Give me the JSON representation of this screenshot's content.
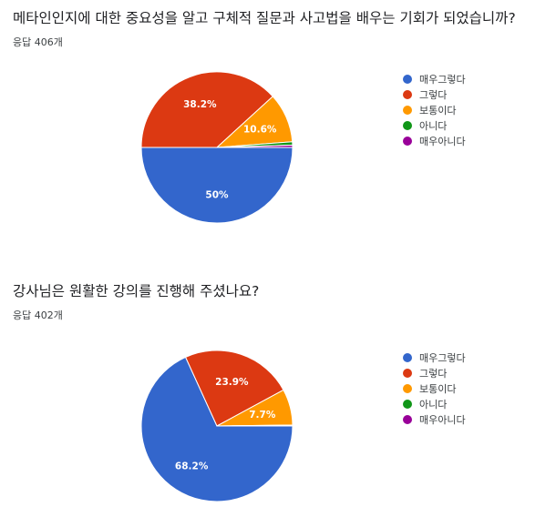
{
  "legend_labels": [
    "매우그렇다",
    "그렇다",
    "보통이다",
    "아니다",
    "매우아니다"
  ],
  "colors": [
    "#3366cc",
    "#dc3912",
    "#ff9900",
    "#109618",
    "#990099"
  ],
  "questions": [
    {
      "title": "메타인인지에 대한 중요성을 알고 구체적 질문과 사고법을 배우는 기회가 되었습니까?",
      "response_count": "응답 406개"
    },
    {
      "title": "강사님은 원활한 강의를 진행해 주셨나요?",
      "response_count": "응답 402개"
    }
  ],
  "chart_data": [
    {
      "type": "pie",
      "labels": [
        "매우그렇다",
        "그렇다",
        "보통이다",
        "아니다",
        "매우아니다"
      ],
      "values": [
        50,
        38.2,
        10.6,
        0.7,
        0.5
      ],
      "data_labels": [
        "50%",
        "38.2%",
        "10.6%",
        "",
        ""
      ],
      "legend": "right"
    },
    {
      "type": "pie",
      "labels": [
        "매우그렇다",
        "그렇다",
        "보통이다",
        "아니다",
        "매우아니다"
      ],
      "values": [
        68.2,
        23.9,
        7.7,
        0.1,
        0.1
      ],
      "data_labels": [
        "68.2%",
        "23.9%",
        "7.7%",
        "",
        ""
      ],
      "legend": "right"
    }
  ]
}
